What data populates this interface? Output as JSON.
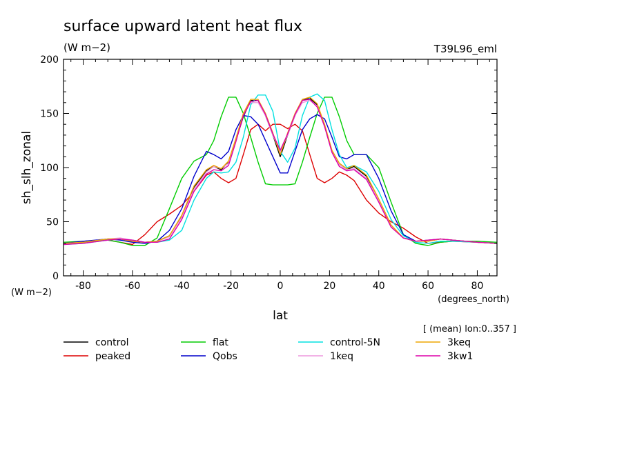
{
  "chart_data": {
    "type": "line",
    "title": "surface upward latent heat flux",
    "units": "(W m−2)",
    "experiment": "T39L96_eml",
    "xlabel": "lat",
    "ylabel": "sh_slh_zonal",
    "yunit_label": "(W m−2)",
    "xunit_label": "(degrees_north)",
    "averaging_note": "[ (mean) lon:0..357 ]",
    "xlim": [
      -88,
      88
    ],
    "ylim": [
      0,
      200
    ],
    "xticks": [
      -80,
      -60,
      -40,
      -20,
      0,
      20,
      40,
      60,
      80
    ],
    "yticks": [
      0,
      50,
      100,
      150,
      200
    ],
    "grid": false,
    "legend_position": "bottom",
    "x": [
      -88,
      -80,
      -70,
      -65,
      -60,
      -55,
      -50,
      -45,
      -40,
      -35,
      -30,
      -27,
      -24,
      -21,
      -18,
      -15,
      -12,
      -9,
      -6,
      -3,
      0,
      3,
      6,
      9,
      12,
      15,
      18,
      21,
      24,
      27,
      30,
      35,
      40,
      45,
      50,
      55,
      60,
      65,
      70,
      80,
      88
    ],
    "series": [
      {
        "name": "control",
        "color": "#000000",
        "values": [
          30,
          31,
          34,
          34,
          32,
          31,
          32,
          37,
          55,
          82,
          97,
          101,
          98,
          105,
          125,
          147,
          162,
          162,
          148,
          130,
          110,
          130,
          148,
          162,
          164,
          158,
          138,
          115,
          103,
          98,
          101,
          92,
          70,
          46,
          35,
          32,
          32,
          34,
          33,
          31,
          30
        ]
      },
      {
        "name": "peaked",
        "color": "#dd0000",
        "values": [
          30,
          31,
          33,
          31,
          29,
          38,
          50,
          57,
          65,
          78,
          93,
          96,
          90,
          86,
          90,
          112,
          135,
          140,
          134,
          140,
          140,
          136,
          140,
          134,
          112,
          90,
          86,
          90,
          96,
          93,
          88,
          70,
          58,
          50,
          44,
          36,
          30,
          31,
          32,
          31,
          30
        ]
      },
      {
        "name": "flat",
        "color": "#00cc00",
        "values": [
          31,
          32,
          33,
          31,
          28,
          28,
          35,
          62,
          90,
          106,
          112,
          125,
          147,
          165,
          165,
          150,
          128,
          105,
          85,
          84,
          84,
          84,
          85,
          105,
          128,
          150,
          165,
          165,
          147,
          125,
          112,
          112,
          100,
          68,
          38,
          30,
          28,
          31,
          32,
          32,
          31
        ]
      },
      {
        "name": "Qobs",
        "color": "#0000cc",
        "values": [
          30,
          32,
          34,
          33,
          31,
          30,
          32,
          42,
          62,
          92,
          115,
          112,
          108,
          115,
          135,
          148,
          147,
          140,
          125,
          110,
          95,
          95,
          115,
          135,
          145,
          149,
          145,
          128,
          110,
          108,
          112,
          112,
          90,
          60,
          38,
          32,
          33,
          34,
          33,
          31,
          30
        ]
      },
      {
        "name": "control-5N",
        "color": "#00e0e0",
        "values": [
          29,
          30,
          33,
          34,
          33,
          31,
          31,
          33,
          42,
          70,
          90,
          96,
          95,
          96,
          105,
          128,
          158,
          167,
          167,
          152,
          115,
          105,
          118,
          148,
          165,
          168,
          162,
          135,
          112,
          100,
          102,
          96,
          78,
          52,
          37,
          31,
          30,
          32,
          32,
          31,
          30
        ]
      },
      {
        "name": "1keq",
        "color": "#ee99dd",
        "values": [
          30,
          31,
          34,
          35,
          33,
          31,
          32,
          36,
          54,
          80,
          96,
          101,
          99,
          104,
          126,
          150,
          160,
          160,
          148,
          130,
          114,
          130,
          148,
          160,
          162,
          157,
          138,
          115,
          103,
          98,
          99,
          90,
          70,
          46,
          35,
          32,
          33,
          34,
          33,
          31,
          30
        ]
      },
      {
        "name": "3keq",
        "color": "#eea500",
        "values": [
          30,
          31,
          34,
          34,
          32,
          31,
          32,
          37,
          56,
          83,
          98,
          102,
          99,
          106,
          127,
          150,
          163,
          163,
          150,
          132,
          112,
          132,
          150,
          163,
          165,
          159,
          140,
          116,
          104,
          99,
          102,
          93,
          71,
          47,
          35,
          32,
          32,
          34,
          33,
          31,
          30
        ]
      },
      {
        "name": "3kw1",
        "color": "#dd00aa",
        "values": [
          29,
          30,
          33,
          34,
          33,
          31,
          31,
          34,
          52,
          78,
          94,
          98,
          97,
          102,
          124,
          148,
          161,
          162,
          149,
          131,
          116,
          131,
          149,
          162,
          163,
          156,
          138,
          114,
          101,
          97,
          98,
          89,
          68,
          45,
          35,
          32,
          33,
          34,
          33,
          31,
          30
        ]
      }
    ]
  }
}
